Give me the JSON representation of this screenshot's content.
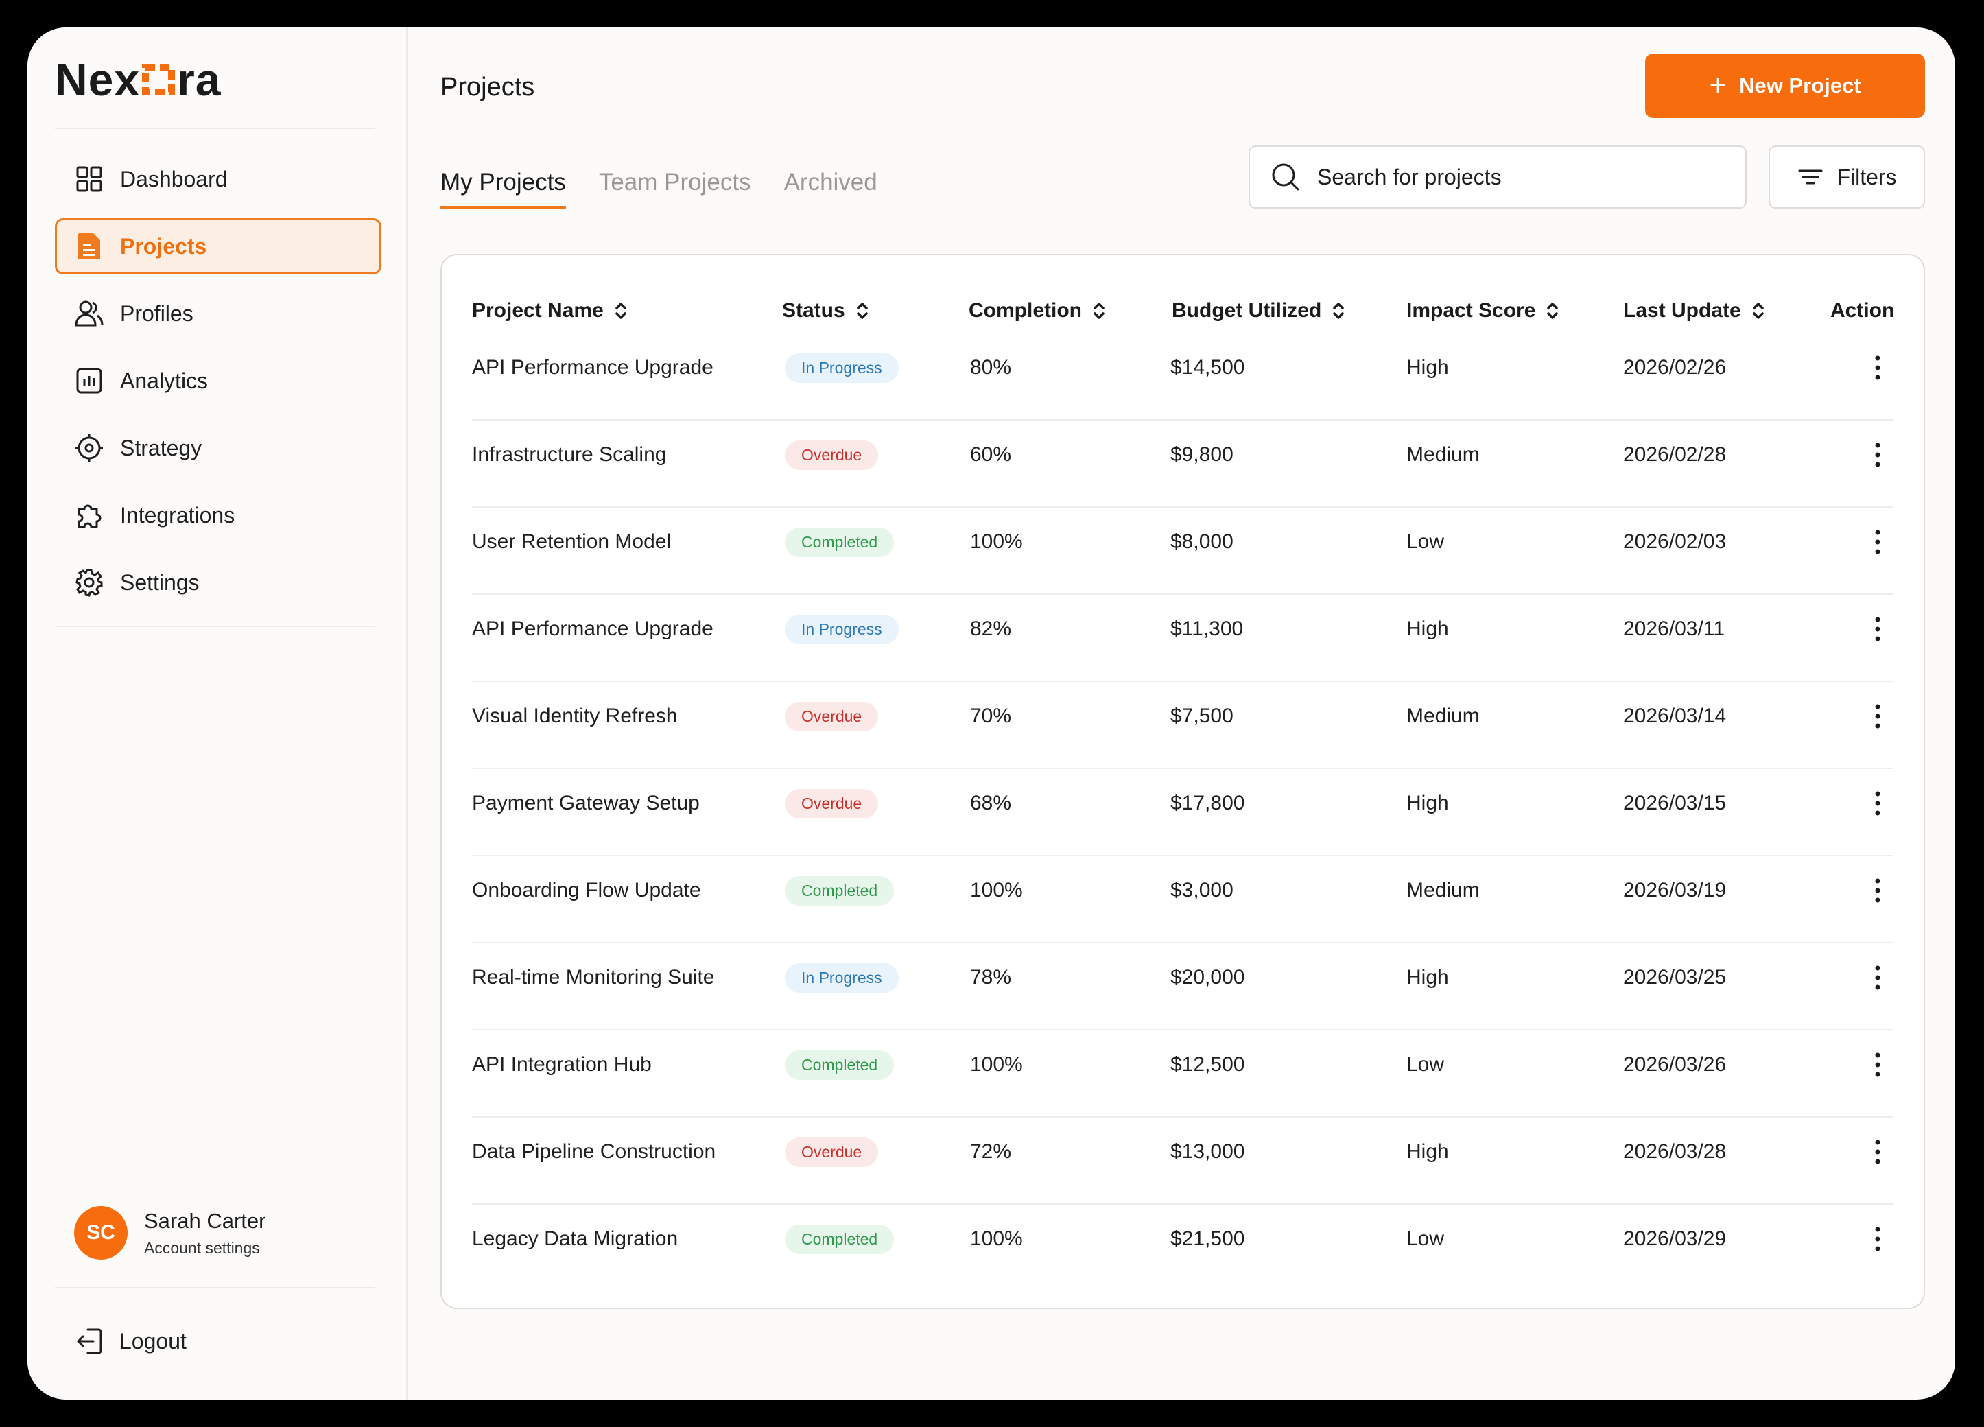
{
  "brand": {
    "prefix": "Nex",
    "suffix": "ra",
    "accent": "#F76D0D"
  },
  "sidebar": {
    "items": [
      {
        "label": "Dashboard",
        "icon": "grid-icon",
        "active": false
      },
      {
        "label": "Projects",
        "icon": "document-icon",
        "active": true
      },
      {
        "label": "Profiles",
        "icon": "users-icon",
        "active": false
      },
      {
        "label": "Analytics",
        "icon": "bar-chart-icon",
        "active": false
      },
      {
        "label": "Strategy",
        "icon": "target-icon",
        "active": false
      },
      {
        "label": "Integrations",
        "icon": "puzzle-icon",
        "active": false
      },
      {
        "label": "Settings",
        "icon": "gear-icon",
        "active": false
      }
    ],
    "user": {
      "initials": "SC",
      "name": "Sarah Carter",
      "subtitle": "Account settings"
    },
    "logout_label": "Logout"
  },
  "header": {
    "title": "Projects",
    "new_button_label": "New Project"
  },
  "tabs": [
    {
      "label": "My Projects",
      "active": true
    },
    {
      "label": "Team Projects",
      "active": false
    },
    {
      "label": "Archived",
      "active": false
    }
  ],
  "search": {
    "placeholder": "Search for projects"
  },
  "filters_label": "Filters",
  "table": {
    "columns": [
      "Project Name",
      "Status",
      "Completion",
      "Budget Utilized",
      "Impact Score",
      "Last Update",
      "Action"
    ],
    "rows": [
      {
        "name": "API Performance Upgrade",
        "status": "In Progress",
        "completion": "80%",
        "budget": "$14,500",
        "impact": "High",
        "updated": "2026/02/26"
      },
      {
        "name": "Infrastructure Scaling",
        "status": "Overdue",
        "completion": "60%",
        "budget": "$9,800",
        "impact": "Medium",
        "updated": "2026/02/28"
      },
      {
        "name": "User Retention Model",
        "status": "Completed",
        "completion": "100%",
        "budget": "$8,000",
        "impact": "Low",
        "updated": "2026/02/03"
      },
      {
        "name": "API Performance Upgrade",
        "status": "In Progress",
        "completion": "82%",
        "budget": "$11,300",
        "impact": "High",
        "updated": "2026/03/11"
      },
      {
        "name": "Visual Identity Refresh",
        "status": "Overdue",
        "completion": "70%",
        "budget": "$7,500",
        "impact": "Medium",
        "updated": "2026/03/14"
      },
      {
        "name": "Payment Gateway Setup",
        "status": "Overdue",
        "completion": "68%",
        "budget": "$17,800",
        "impact": "High",
        "updated": "2026/03/15"
      },
      {
        "name": "Onboarding Flow Update",
        "status": "Completed",
        "completion": "100%",
        "budget": "$3,000",
        "impact": "Medium",
        "updated": "2026/03/19"
      },
      {
        "name": "Real-time Monitoring Suite",
        "status": "In Progress",
        "completion": "78%",
        "budget": "$20,000",
        "impact": "High",
        "updated": "2026/03/25"
      },
      {
        "name": "API Integration Hub",
        "status": "Completed",
        "completion": "100%",
        "budget": "$12,500",
        "impact": "Low",
        "updated": "2026/03/26"
      },
      {
        "name": "Data Pipeline Construction",
        "status": "Overdue",
        "completion": "72%",
        "budget": "$13,000",
        "impact": "High",
        "updated": "2026/03/28"
      },
      {
        "name": "Legacy Data Migration",
        "status": "Completed",
        "completion": "100%",
        "budget": "$21,500",
        "impact": "Low",
        "updated": "2026/03/29"
      }
    ]
  }
}
